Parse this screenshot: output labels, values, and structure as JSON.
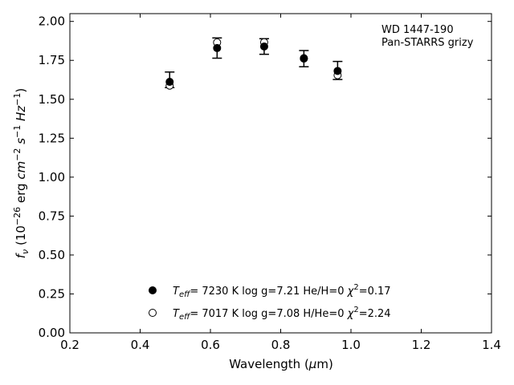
{
  "chart_data": {
    "type": "scatter",
    "title": "",
    "xlabel": "Wavelength (µm)",
    "ylabel": "fν (10⁻²⁶ erg cm⁻² s⁻¹ Hz⁻¹)",
    "xlim": [
      0.2,
      1.4
    ],
    "ylim": [
      0.0,
      2.05
    ],
    "xticks": [
      "0.2",
      "0.4",
      "0.6",
      "0.8",
      "1.0",
      "1.2",
      "1.4"
    ],
    "yticks": [
      "0.00",
      "0.25",
      "0.50",
      "0.75",
      "1.00",
      "1.25",
      "1.50",
      "1.75",
      "2.00"
    ],
    "grid": false,
    "legend_position": "bottom-center",
    "annotation": [
      "WD 1447-190",
      "Pan-STARRS grizy"
    ],
    "observed": {
      "x": [
        0.484,
        0.619,
        0.753,
        0.866,
        0.962
      ],
      "y": [
        1.625,
        1.829,
        1.839,
        1.761,
        1.685
      ],
      "yerr": [
        0.05,
        0.065,
        0.05,
        0.052,
        0.058
      ]
    },
    "series": [
      {
        "name": "Teff= 7230 K  log g=7.21  He/H=0  χ²=0.17",
        "marker": "filled-circle",
        "x": [
          0.484,
          0.619,
          0.753,
          0.866,
          0.962
        ],
        "y": [
          1.612,
          1.829,
          1.839,
          1.761,
          1.682
        ]
      },
      {
        "name": "Teff= 7017 K  log g=7.08  H/He=0  χ²=2.24",
        "marker": "open-circle",
        "x": [
          0.484,
          0.619,
          0.753,
          0.866,
          0.962
        ],
        "y": [
          1.588,
          1.865,
          1.866,
          1.764,
          1.655
        ]
      }
    ]
  },
  "legend": {
    "items": [
      {
        "pre": "T",
        "sub": "eff",
        "rest": "=  7230 K  log g=7.21  He/H=0  ",
        "chi": "χ",
        "sup": "2",
        "val": "=0.17"
      },
      {
        "pre": "T",
        "sub": "eff",
        "rest": "=  7017 K  log g=7.08  H/He=0  ",
        "chi": "χ",
        "sup": "2",
        "val": "=2.24"
      }
    ]
  },
  "ylabel_parts": {
    "f": "f",
    "nu": "ν",
    "open": " (10",
    "exp1": "−26",
    "erg": " erg ",
    "cm": "cm",
    "exp2": "−2",
    "s": " s",
    "exp3": "−1",
    "hz": " Hz",
    "exp4": "−1",
    "close": ")"
  },
  "xlabel_parts": {
    "pre": "Wavelength (",
    "mu": "µ",
    "post": "m)"
  }
}
